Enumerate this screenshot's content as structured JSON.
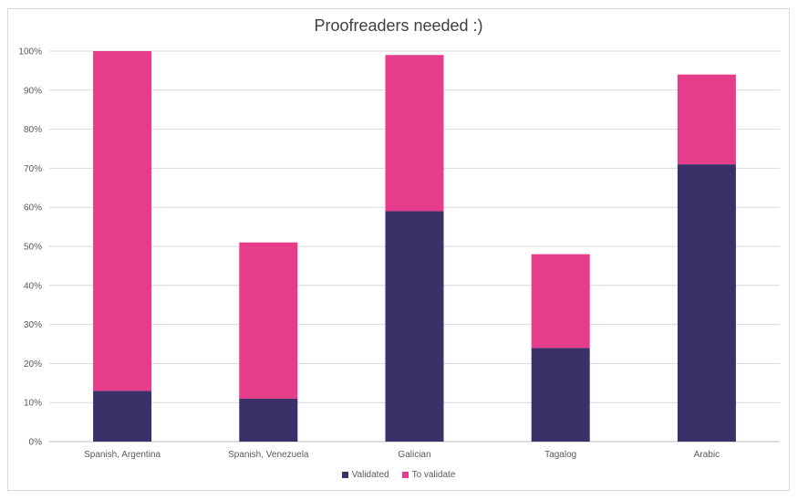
{
  "chart_data": {
    "type": "bar",
    "stacked": true,
    "title": "Proofreaders needed :)",
    "xlabel": "",
    "ylabel": "",
    "ylim": [
      0,
      100
    ],
    "y_ticks": [
      "0%",
      "10%",
      "20%",
      "30%",
      "40%",
      "50%",
      "60%",
      "70%",
      "80%",
      "90%",
      "100%"
    ],
    "grid": true,
    "legend_position": "bottom",
    "categories": [
      "Spanish, Argentina",
      "Spanish, Venezuela",
      "Galician",
      "Tagalog",
      "Arabic"
    ],
    "series": [
      {
        "name": "Validated",
        "color": "#3b3068",
        "values": [
          13,
          11,
          59,
          24,
          71
        ]
      },
      {
        "name": "To validate",
        "color": "#e53d8a",
        "values": [
          87,
          40,
          40,
          24,
          23
        ]
      }
    ]
  }
}
